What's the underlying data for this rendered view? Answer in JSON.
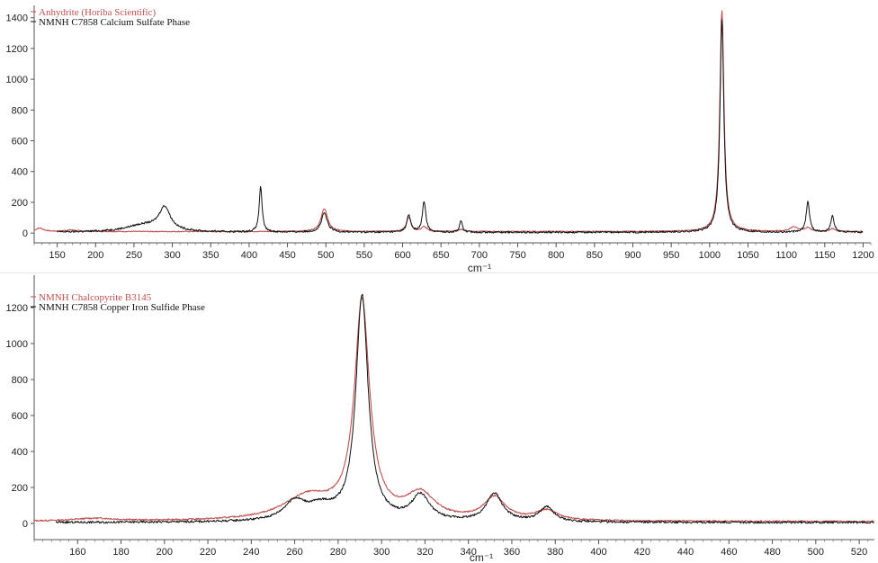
{
  "chart_data": [
    {
      "type": "line",
      "xlabel": "cm⁻¹",
      "ylabel": "",
      "xlim": [
        120,
        1210
      ],
      "ylim": [
        -40,
        1480
      ],
      "xticks": [
        150,
        200,
        250,
        300,
        350,
        400,
        450,
        500,
        550,
        600,
        650,
        700,
        750,
        800,
        850,
        900,
        950,
        1000,
        1050,
        1100,
        1150,
        1200
      ],
      "yticks": [
        0,
        200,
        400,
        600,
        800,
        1000,
        1200,
        1400
      ],
      "legend_position": "top-left",
      "grid": false,
      "series": [
        {
          "name": "Anhydrite (Horiba Scientific)",
          "color": "#c0504d",
          "x_start": 120,
          "x_end": 1200,
          "baseline": 10,
          "noise": 3,
          "peaks": [
            [
              127,
              22,
              6
            ],
            [
              168,
              10,
              10
            ],
            [
              498,
              150,
              5
            ],
            [
              608,
              95,
              3.5
            ],
            [
              628,
              30,
              4
            ],
            [
              676,
              14,
              5
            ],
            [
              1016,
              1440,
              3.2
            ],
            [
              1110,
              30,
              6
            ],
            [
              1128,
              25,
              4
            ],
            [
              1160,
              18,
              4
            ]
          ]
        },
        {
          "name": "NMNH C7858 Calcium Sulfate Phase",
          "color": "#111111",
          "x_start": 150,
          "x_end": 1200,
          "baseline": 5,
          "noise": 6,
          "peaks": [
            [
              290,
              150,
              9
            ],
            [
              262,
              45,
              28
            ],
            [
              415,
              300,
              2.2
            ],
            [
              498,
              125,
              4.5
            ],
            [
              608,
              110,
              3
            ],
            [
              628,
              200,
              2.6
            ],
            [
              676,
              75,
              2.2
            ],
            [
              1016,
              1390,
              3
            ],
            [
              1128,
              200,
              2.6
            ],
            [
              1160,
              105,
              2.6
            ]
          ]
        }
      ]
    },
    {
      "type": "line",
      "xlabel": "cm⁻¹",
      "ylabel": "",
      "xlim": [
        140,
        527
      ],
      "ylim": [
        -40,
        1380
      ],
      "xticks": [
        160,
        180,
        200,
        220,
        240,
        260,
        280,
        300,
        320,
        340,
        360,
        380,
        400,
        420,
        440,
        460,
        480,
        500,
        520
      ],
      "yticks": [
        0,
        200,
        400,
        600,
        800,
        1000,
        1200
      ],
      "legend_position": "top-left",
      "grid": false,
      "series": [
        {
          "name": "NMNH Chalcopyrite B3145",
          "color": "#c0504d",
          "x_start": 140,
          "x_end": 527,
          "baseline": 10,
          "noise": 4,
          "peaks": [
            [
              168,
              15,
              12
            ],
            [
              266,
              130,
              14
            ],
            [
              291,
              1200,
              4.2
            ],
            [
              318,
              140,
              8
            ],
            [
              352,
              125,
              6
            ],
            [
              376,
              55,
              6
            ]
          ]
        },
        {
          "name": "NMNH C7858 Copper Iron Sulfide Phase",
          "color": "#111111",
          "x_start": 150,
          "x_end": 527,
          "baseline": 5,
          "noise": 6,
          "peaks": [
            [
              260,
              100,
              6
            ],
            [
              272,
              70,
              8
            ],
            [
              291,
              1250,
              3.4
            ],
            [
              318,
              140,
              5
            ],
            [
              352,
              155,
              4.5
            ],
            [
              376,
              80,
              4
            ]
          ]
        }
      ]
    }
  ]
}
